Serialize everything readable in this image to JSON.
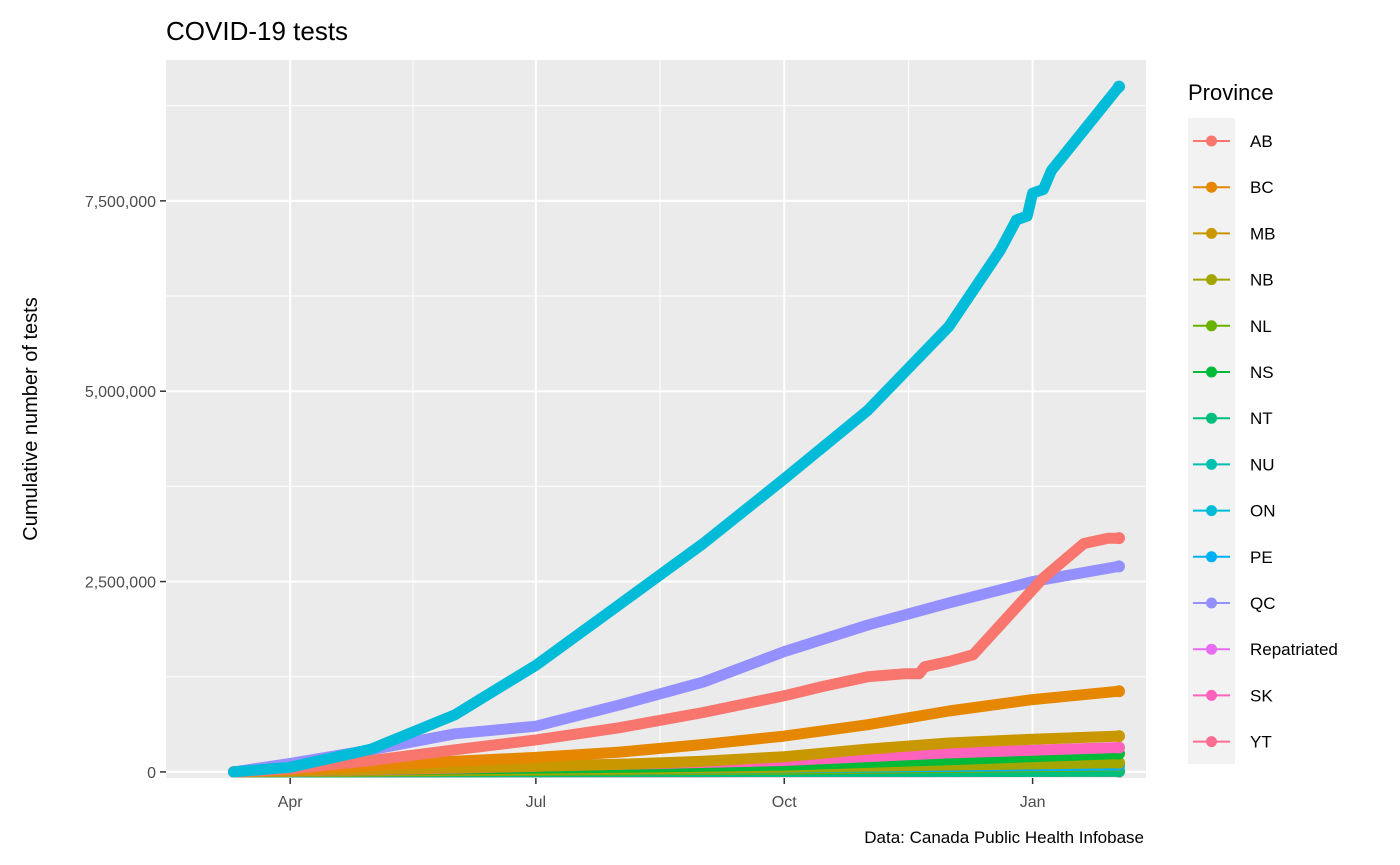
{
  "chart_data": {
    "type": "line",
    "title": "COVID-19 tests",
    "xlabel": "",
    "ylabel": "Cumulative number of tests",
    "caption": "Data: Canada Public Health Infobase",
    "legend_title": "Province",
    "legend_position": "right",
    "grid": true,
    "x_type": "date",
    "xlim": [
      "2020-02-15",
      "2021-02-12"
    ],
    "ylim": [
      -80000,
      9350000
    ],
    "x_ticks": [
      {
        "date": "2020-04-01",
        "label": "Apr"
      },
      {
        "date": "2020-07-01",
        "label": "Jul"
      },
      {
        "date": "2020-10-01",
        "label": "Oct"
      },
      {
        "date": "2021-01-01",
        "label": "Jan"
      }
    ],
    "y_ticks": [
      {
        "value": 0,
        "label": "0"
      },
      {
        "value": 2500000,
        "label": "2,500,000"
      },
      {
        "value": 5000000,
        "label": "5,000,000"
      },
      {
        "value": 7500000,
        "label": "7,500,000"
      }
    ],
    "series": [
      {
        "name": "AB",
        "color": "#F8766D",
        "points": [
          [
            "2020-03-11",
            0
          ],
          [
            "2020-04-01",
            40000
          ],
          [
            "2020-05-01",
            150000
          ],
          [
            "2020-06-01",
            290000
          ],
          [
            "2020-07-01",
            420000
          ],
          [
            "2020-08-01",
            580000
          ],
          [
            "2020-09-01",
            780000
          ],
          [
            "2020-10-01",
            1000000
          ],
          [
            "2020-10-15",
            1120000
          ],
          [
            "2020-11-01",
            1250000
          ],
          [
            "2020-11-15",
            1290000
          ],
          [
            "2020-11-20",
            1290000
          ],
          [
            "2020-11-22",
            1380000
          ],
          [
            "2020-12-01",
            1450000
          ],
          [
            "2020-12-10",
            1540000
          ],
          [
            "2021-01-05",
            2550000
          ],
          [
            "2021-01-20",
            3000000
          ],
          [
            "2021-01-29",
            3070000
          ],
          [
            "2021-02-02",
            3070000
          ]
        ]
      },
      {
        "name": "BC",
        "color": "#E58700",
        "points": [
          [
            "2020-03-11",
            0
          ],
          [
            "2020-04-01",
            30000
          ],
          [
            "2020-05-01",
            80000
          ],
          [
            "2020-06-01",
            140000
          ],
          [
            "2020-07-01",
            190000
          ],
          [
            "2020-08-01",
            260000
          ],
          [
            "2020-09-01",
            360000
          ],
          [
            "2020-10-01",
            470000
          ],
          [
            "2020-11-01",
            620000
          ],
          [
            "2020-12-01",
            800000
          ],
          [
            "2021-01-01",
            950000
          ],
          [
            "2021-02-02",
            1060000
          ]
        ]
      },
      {
        "name": "MB",
        "color": "#C99800",
        "points": [
          [
            "2020-03-11",
            0
          ],
          [
            "2020-04-01",
            15000
          ],
          [
            "2020-05-01",
            35000
          ],
          [
            "2020-06-01",
            55000
          ],
          [
            "2020-07-01",
            75000
          ],
          [
            "2020-08-01",
            100000
          ],
          [
            "2020-09-01",
            140000
          ],
          [
            "2020-10-01",
            200000
          ],
          [
            "2020-11-01",
            300000
          ],
          [
            "2020-12-01",
            380000
          ],
          [
            "2021-01-01",
            430000
          ],
          [
            "2021-02-02",
            470000
          ]
        ]
      },
      {
        "name": "NB",
        "color": "#A3A500",
        "points": [
          [
            "2020-03-11",
            0
          ],
          [
            "2020-06-01",
            20000
          ],
          [
            "2020-10-01",
            60000
          ],
          [
            "2021-02-02",
            120000
          ]
        ]
      },
      {
        "name": "NL",
        "color": "#6BB100",
        "points": [
          [
            "2020-03-11",
            0
          ],
          [
            "2020-06-01",
            15000
          ],
          [
            "2020-10-01",
            35000
          ],
          [
            "2021-02-02",
            80000
          ]
        ]
      },
      {
        "name": "NS",
        "color": "#00BA38",
        "points": [
          [
            "2020-03-11",
            0
          ],
          [
            "2020-05-01",
            30000
          ],
          [
            "2020-08-01",
            60000
          ],
          [
            "2020-10-01",
            90000
          ],
          [
            "2020-12-01",
            160000
          ],
          [
            "2021-02-02",
            240000
          ]
        ]
      },
      {
        "name": "NT",
        "color": "#00BF7D",
        "points": [
          [
            "2020-03-11",
            0
          ],
          [
            "2021-02-02",
            10000
          ]
        ]
      },
      {
        "name": "NU",
        "color": "#00C0AF",
        "points": [
          [
            "2020-03-11",
            0
          ],
          [
            "2021-02-02",
            8000
          ]
        ]
      },
      {
        "name": "ON",
        "color": "#00BCD8",
        "points": [
          [
            "2020-03-11",
            0
          ],
          [
            "2020-04-01",
            60000
          ],
          [
            "2020-05-01",
            300000
          ],
          [
            "2020-06-01",
            750000
          ],
          [
            "2020-07-01",
            1400000
          ],
          [
            "2020-08-01",
            2200000
          ],
          [
            "2020-09-01",
            3000000
          ],
          [
            "2020-10-01",
            3850000
          ],
          [
            "2020-11-01",
            4750000
          ],
          [
            "2020-12-01",
            5850000
          ],
          [
            "2020-12-20",
            6850000
          ],
          [
            "2020-12-26",
            7250000
          ],
          [
            "2020-12-30",
            7300000
          ],
          [
            "2021-01-01",
            7600000
          ],
          [
            "2021-01-05",
            7650000
          ],
          [
            "2021-01-08",
            7900000
          ],
          [
            "2021-02-02",
            9000000
          ]
        ]
      },
      {
        "name": "PE",
        "color": "#00B0F6",
        "points": [
          [
            "2020-03-11",
            0
          ],
          [
            "2021-02-02",
            90000
          ]
        ]
      },
      {
        "name": "QC",
        "color": "#9590FF",
        "points": [
          [
            "2020-03-11",
            0
          ],
          [
            "2020-04-01",
            110000
          ],
          [
            "2020-05-01",
            290000
          ],
          [
            "2020-06-01",
            500000
          ],
          [
            "2020-07-01",
            600000
          ],
          [
            "2020-08-01",
            880000
          ],
          [
            "2020-09-01",
            1180000
          ],
          [
            "2020-10-01",
            1580000
          ],
          [
            "2020-11-01",
            1930000
          ],
          [
            "2020-12-01",
            2220000
          ],
          [
            "2021-01-01",
            2500000
          ],
          [
            "2021-02-02",
            2700000
          ]
        ]
      },
      {
        "name": "Repatriated",
        "color": "#E76BF3",
        "points": [
          [
            "2020-03-11",
            0
          ],
          [
            "2021-02-02",
            5000
          ]
        ]
      },
      {
        "name": "SK",
        "color": "#FF62BC",
        "points": [
          [
            "2020-03-11",
            0
          ],
          [
            "2020-06-01",
            50000
          ],
          [
            "2020-10-01",
            150000
          ],
          [
            "2020-12-01",
            250000
          ],
          [
            "2021-02-02",
            320000
          ]
        ]
      },
      {
        "name": "YT",
        "color": "#FF6C91",
        "points": [
          [
            "2020-03-11",
            0
          ],
          [
            "2021-02-02",
            6000
          ]
        ]
      }
    ]
  }
}
